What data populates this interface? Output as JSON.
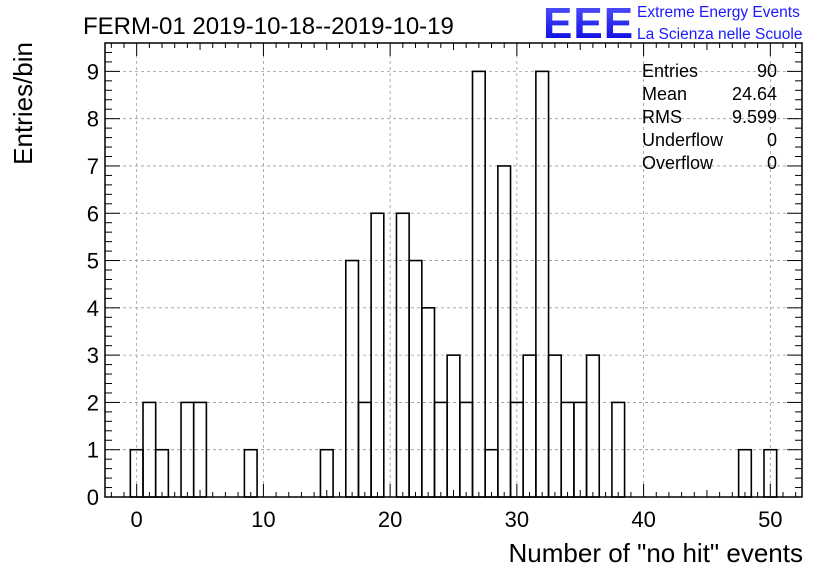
{
  "chart_data": {
    "type": "bar",
    "title": "FERM-01 2019-10-18--2019-10-19",
    "xlabel": "Number of \"no hit\" events",
    "ylabel": "Entries/bin",
    "xlim": [
      -2.5,
      52.5
    ],
    "ylim": [
      0,
      9.6
    ],
    "bin_width": 1,
    "x_ticks": [
      0,
      10,
      20,
      30,
      40,
      50
    ],
    "y_ticks": [
      0,
      1,
      2,
      3,
      4,
      5,
      6,
      7,
      8,
      9
    ],
    "grid": true,
    "legend_position": "top-right",
    "bins": [
      {
        "x": 0,
        "y": 1
      },
      {
        "x": 1,
        "y": 2
      },
      {
        "x": 2,
        "y": 1
      },
      {
        "x": 4,
        "y": 2
      },
      {
        "x": 5,
        "y": 2
      },
      {
        "x": 9,
        "y": 1
      },
      {
        "x": 15,
        "y": 1
      },
      {
        "x": 17,
        "y": 5
      },
      {
        "x": 18,
        "y": 2
      },
      {
        "x": 19,
        "y": 6
      },
      {
        "x": 21,
        "y": 6
      },
      {
        "x": 22,
        "y": 5
      },
      {
        "x": 23,
        "y": 4
      },
      {
        "x": 24,
        "y": 2
      },
      {
        "x": 25,
        "y": 3
      },
      {
        "x": 26,
        "y": 2
      },
      {
        "x": 27,
        "y": 9
      },
      {
        "x": 28,
        "y": 1
      },
      {
        "x": 29,
        "y": 7
      },
      {
        "x": 30,
        "y": 2
      },
      {
        "x": 31,
        "y": 3
      },
      {
        "x": 32,
        "y": 9
      },
      {
        "x": 33,
        "y": 3
      },
      {
        "x": 34,
        "y": 2
      },
      {
        "x": 35,
        "y": 2
      },
      {
        "x": 36,
        "y": 3
      },
      {
        "x": 38,
        "y": 2
      },
      {
        "x": 48,
        "y": 1
      },
      {
        "x": 50,
        "y": 1
      }
    ],
    "stats": [
      {
        "label": "Entries",
        "value": "90"
      },
      {
        "label": "Mean",
        "value": "24.64"
      },
      {
        "label": "RMS",
        "value": "9.599"
      },
      {
        "label": "Underflow",
        "value": "0"
      },
      {
        "label": "Overflow",
        "value": "0"
      }
    ]
  },
  "logo": {
    "text": "EEE",
    "line1": "Extreme Energy Events",
    "line2": "La Scienza nelle Scuole",
    "color": "#1a1aff"
  }
}
